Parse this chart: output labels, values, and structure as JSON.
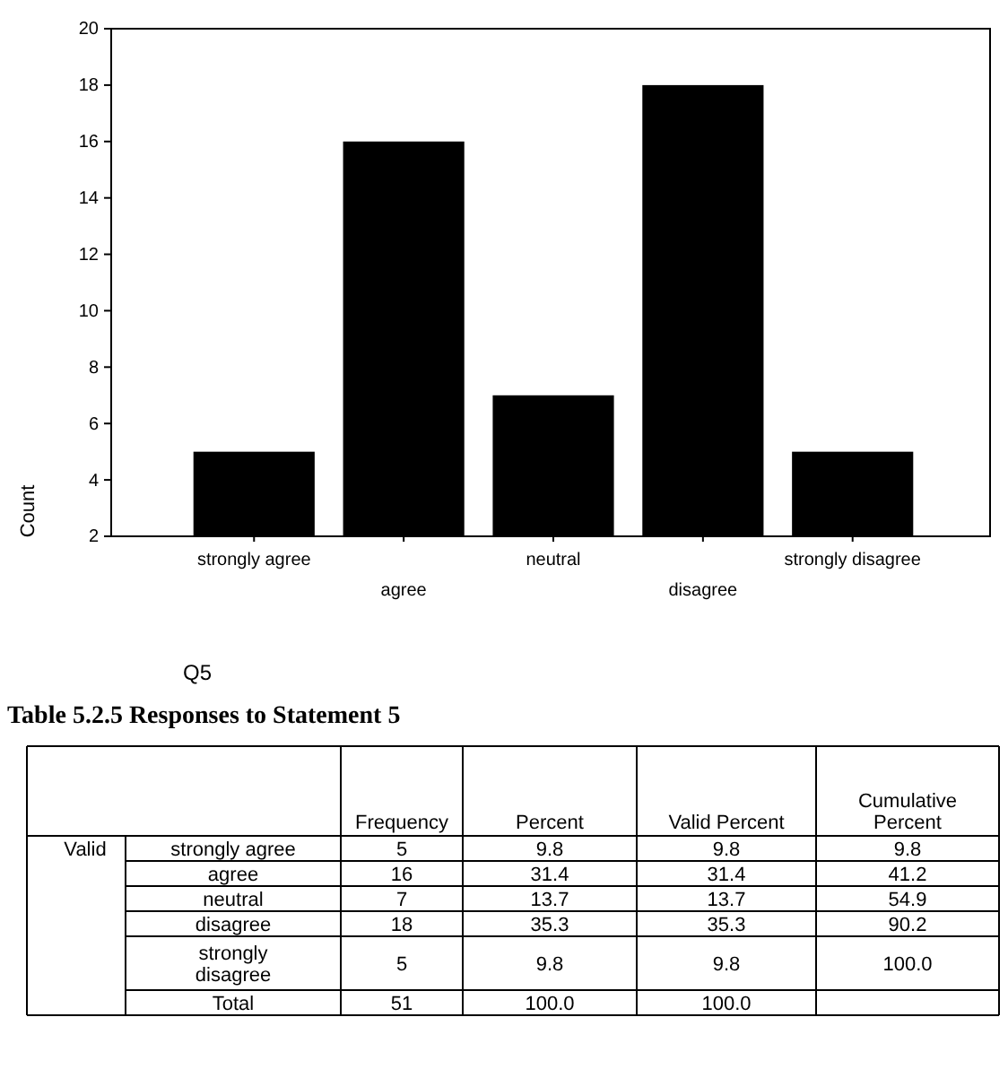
{
  "chart_data": [
    {
      "type": "bar",
      "xlabel": "Q5",
      "ylabel": "Count",
      "categories": [
        "strongly agree",
        "agree",
        "neutral",
        "disagree",
        "strongly disagree"
      ],
      "values": [
        5,
        16,
        7,
        18,
        5
      ],
      "color": "#000000",
      "ylim": [
        2,
        20
      ],
      "yticks": [
        2,
        4,
        6,
        8,
        10,
        12,
        14,
        16,
        18,
        20
      ],
      "grid": false
    },
    {
      "type": "other",
      "title": "Table 5.2.5 Responses to Statement 5",
      "annotations": [
        "Frequency",
        "Percent",
        "Valid Percent",
        "Cumulative Percent",
        "Valid",
        "strongly agree",
        "5",
        "9.8",
        "9.8",
        "9.8",
        "agree",
        "16",
        "31.4",
        "31.4",
        "41.2",
        "neutral",
        "7",
        "13.7",
        "13.7",
        "54.9",
        "disagree",
        "18",
        "35.3",
        "35.3",
        "90.2",
        "strongly disagree",
        "5",
        "9.8",
        "9.8",
        "100.0",
        "Total",
        "51",
        "100.0",
        "100.0"
      ]
    }
  ]
}
